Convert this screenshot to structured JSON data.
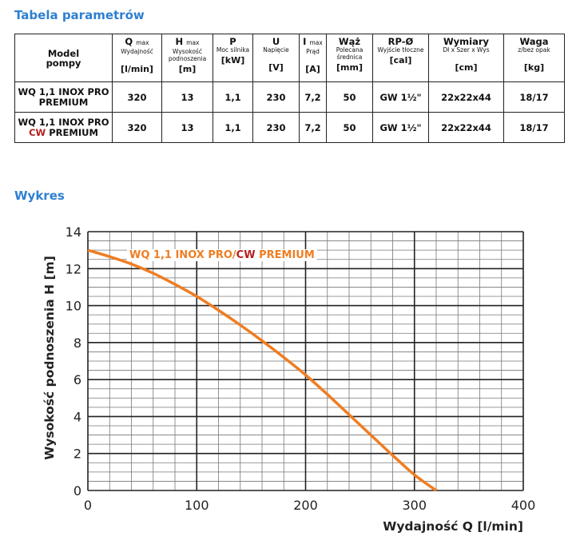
{
  "sections": {
    "table_title": "Tabela parametrów",
    "chart_title": "Wykres"
  },
  "table": {
    "headers": [
      {
        "main": "Model",
        "main2": "pompy",
        "desc": "",
        "unit": ""
      },
      {
        "main": "Q",
        "sub": "max",
        "desc": "Wydajność",
        "unit": "[l/min]"
      },
      {
        "main": "H",
        "sub": "max",
        "desc": "Wysokość podnoszenia",
        "unit": "[m]"
      },
      {
        "main": "P",
        "sub": "",
        "desc": "Moc silnika",
        "unit": "[kW]"
      },
      {
        "main": "U",
        "sub": "",
        "desc": "Napięcie",
        "unit": "[V]"
      },
      {
        "main": "I",
        "sub": "max",
        "desc": "Prąd",
        "unit": "[A]"
      },
      {
        "main": "Wąż",
        "sub": "",
        "desc": "Polecana średnica",
        "unit": "[mm]"
      },
      {
        "main": "RP-Ø",
        "sub": "",
        "desc": "Wyjście tłoczne",
        "unit": "[cal]"
      },
      {
        "main": "Wymiary",
        "sub": "",
        "desc": "Dł x Szer x Wys",
        "unit": "[cm]"
      },
      {
        "main": "Waga",
        "sub": "",
        "desc": "z/bez opak",
        "unit": "[kg]"
      }
    ],
    "rows": [
      {
        "model_line1": "WQ 1,1 INOX PRO",
        "model_cw": "",
        "model_line2": "PREMIUM",
        "cells": [
          "320",
          "13",
          "1,1",
          "230",
          "7,2",
          "50",
          "GW 1½\"",
          "22x22x44",
          "18/17"
        ]
      },
      {
        "model_line1": "WQ 1,1 INOX PRO",
        "model_cw": "CW",
        "model_line2": " PREMIUM",
        "cells": [
          "320",
          "13",
          "1,1",
          "230",
          "7,2",
          "50",
          "GW 1½\"",
          "22x22x44",
          "18/17"
        ]
      }
    ]
  },
  "chart_data": {
    "type": "line",
    "xlabel": "Wydajność Q [l/min]",
    "ylabel": "Wysokość podnoszenia H [m]",
    "xlim": [
      0,
      400
    ],
    "ylim": [
      0,
      14
    ],
    "xticks": [
      "0",
      "100",
      "200",
      "300",
      "400"
    ],
    "yticks": [
      "0",
      "2",
      "4",
      "6",
      "8",
      "10",
      "12",
      "14"
    ],
    "grid": true,
    "legend_placement": "top-center",
    "series": [
      {
        "name_prefix": "WQ 1,1 INOX PRO/",
        "name_cw": "CW",
        "name_suffix": " PREMIUM",
        "color": "#ef7d22",
        "x": [
          0,
          20,
          40,
          60,
          80,
          100,
          120,
          140,
          160,
          180,
          200,
          220,
          240,
          260,
          280,
          300,
          320
        ],
        "y": [
          13.0,
          12.65,
          12.25,
          11.75,
          11.15,
          10.5,
          9.75,
          8.95,
          8.1,
          7.2,
          6.25,
          5.2,
          4.1,
          3.0,
          1.9,
          0.85,
          0.0
        ]
      }
    ],
    "colors": {
      "curve": "#ef7d22",
      "cw": "#b42020",
      "grid": "#222222",
      "minor_grid": "#777777"
    }
  }
}
